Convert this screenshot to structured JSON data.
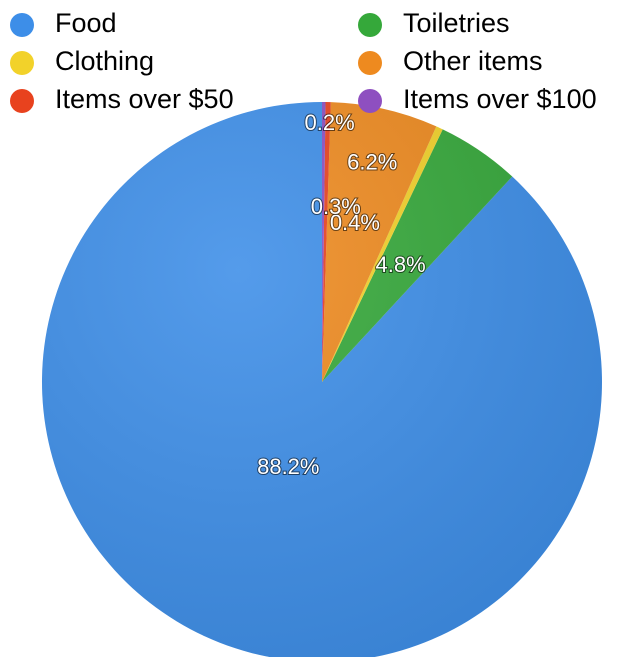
{
  "chart_data": {
    "type": "pie",
    "title": "",
    "legend_position": "top",
    "slices": [
      {
        "name": "Food",
        "value": 88.2,
        "label": "88.2%",
        "color": "#3d8ee8"
      },
      {
        "name": "Toiletries",
        "value": 4.8,
        "label": "4.8%",
        "color": "#35a83a"
      },
      {
        "name": "Clothing",
        "value": 0.4,
        "label": "0.4%",
        "color": "#f2d22a"
      },
      {
        "name": "Other items",
        "value": 6.2,
        "label": "6.2%",
        "color": "#ee8a1f"
      },
      {
        "name": "Items over $50",
        "value": 0.3,
        "label": "0.3%",
        "color": "#e8421e"
      },
      {
        "name": "Items over $100",
        "value": 0.2,
        "label": "0.2%",
        "color": "#8e4fc0"
      }
    ]
  }
}
